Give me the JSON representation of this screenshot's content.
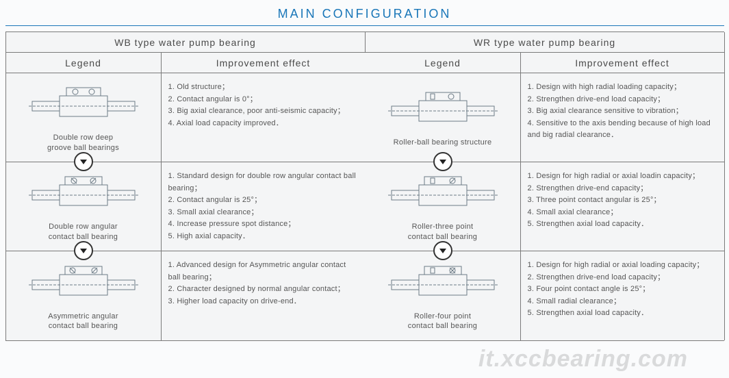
{
  "title": "MAIN CONFIGURATION",
  "colors": {
    "title": "#1976b8",
    "border": "#7a7a7a",
    "cell_bg": "#f4f5f6",
    "text": "#555555",
    "diagram_stroke": "#6b7a85"
  },
  "headers": {
    "wb": "WB type water pump bearing",
    "wr": "WR type water pump bearing",
    "legend": "Legend",
    "effect": "Improvement effect"
  },
  "rows": [
    {
      "wb_caption": "Double row deep\ngroove ball bearings",
      "wb_effect": "1. Old structure；\n2. Contact angular is 0°；\n3. Big axial clearance, poor anti-seismic capacity；\n4. Axial load capacity improved．",
      "wr_caption": "Roller-ball bearing structure",
      "wr_effect": "1. Design with high radial loading capacity；\n2. Strengthen drive-end load capacity；\n3. Big axial clearance sensitive to vibration；\n4. Sensitive to the axis bending because of high load and big radial clearance．"
    },
    {
      "wb_caption": "Double row angular\ncontact ball bearing",
      "wb_effect": "1. Standard design for double row angular contact ball bearing；\n2. Contact angular is 25°；\n3. Small axial clearance；\n4. Increase pressure spot distance；\n5. High axial capacity．",
      "wr_caption": "Roller-three point\ncontact ball bearing",
      "wr_effect": "1. Design for high radial or axial loadin capacity；\n2. Strengthen drive-end capacity；\n3. Three point contact angular is 25°；\n4. Small axial clearance；\n5. Strengthen axial load capacity．"
    },
    {
      "wb_caption": "Asymmetric angular\ncontact ball bearing",
      "wb_effect": "1. Advanced design for Asymmetric angular contact ball bearing；\n2. Character designed by normal angular contact；\n3. Higher load capacity on drive-end．",
      "wr_caption": "Roller-four point\ncontact ball bearing",
      "wr_effect": "1. Design for high radial or axial loading capacity；\n2. Strengthen drive-end load capacity；\n3. Four point contact angle is 25°；\n4. Small radial clearance；\n5. Strengthen axial load capacity．"
    }
  ],
  "watermark": "it.xccbearing.com"
}
